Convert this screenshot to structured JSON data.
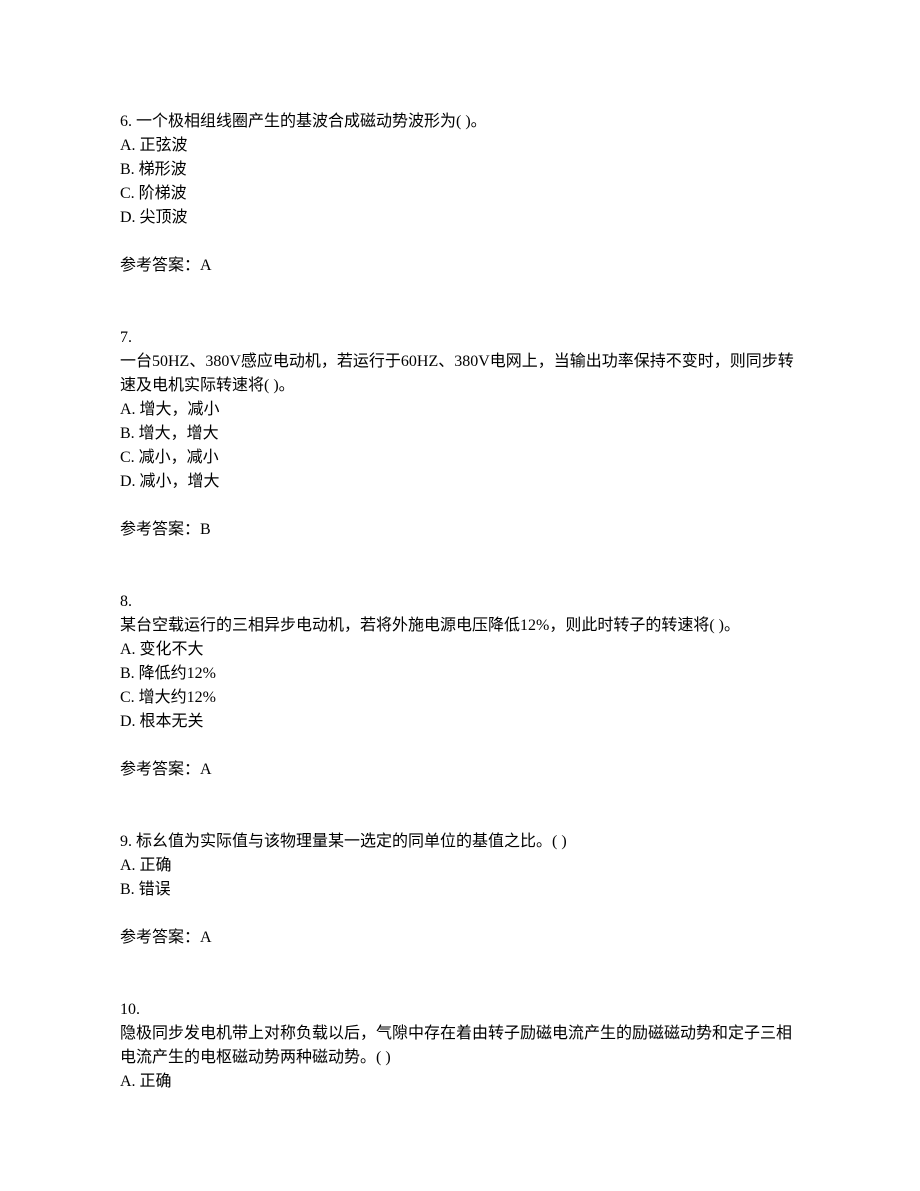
{
  "questions": [
    {
      "number": "6.  ",
      "text": "一个极相组线圈产生的基波合成磁动势波形为(  )。",
      "options": [
        "A. 正弦波",
        "B. 梯形波",
        "C. 阶梯波",
        "D. 尖顶波"
      ],
      "answer_label": "参考答案：A"
    },
    {
      "number": "7. ",
      "text": "一台50HZ、380V感应电动机，若运行于60HZ、380V电网上，当输出功率保持不变时，则同步转速及电机实际转速将(  )。",
      "options": [
        "A. 增大，减小",
        "B. 增大，增大",
        "C. 减小，减小",
        "D. 减小，增大"
      ],
      "answer_label": "参考答案：B"
    },
    {
      "number": "8. ",
      "text": "某台空载运行的三相异步电动机，若将外施电源电压降低12%，则此时转子的转速将(  )。",
      "options": [
        "A. 变化不大",
        "B. 降低约12%",
        "C. 增大约12%",
        "D. 根本无关"
      ],
      "answer_label": "参考答案：A"
    },
    {
      "number": "9.  ",
      "text": "标幺值为实际值与该物理量某一选定的同单位的基值之比。(  )",
      "options": [
        "A. 正确",
        "B. 错误"
      ],
      "answer_label": "参考答案：A"
    },
    {
      "number": "10. ",
      "text": "隐极同步发电机带上对称负载以后，气隙中存在着由转子励磁电流产生的励磁磁动势和定子三相电流产生的电枢磁动势两种磁动势。(  )",
      "options": [
        "A. 正确"
      ],
      "answer_label": ""
    }
  ]
}
